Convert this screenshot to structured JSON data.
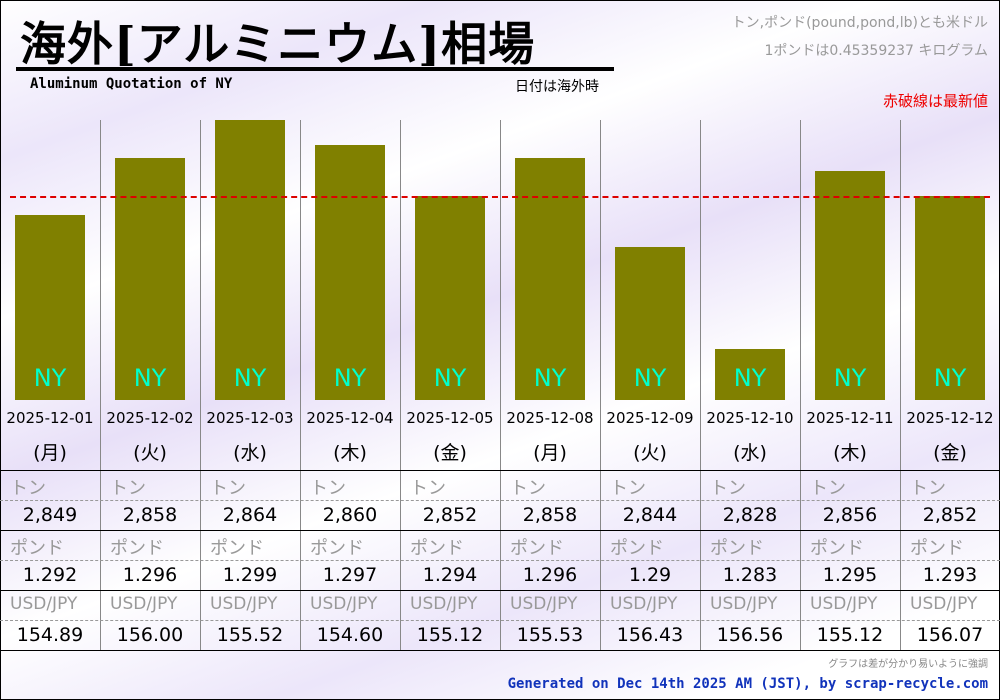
{
  "header": {
    "title": "海外[アルミニウム]相場",
    "subtitle": "Aluminum Quotation of NY",
    "date_note": "日付は海外時",
    "unit_note": "トン,ポンド(pound,pond,lb)とも米ドル",
    "pound_note": "1ポンドは0.45359237 キログラム",
    "red_line_note": "赤破線は最新値"
  },
  "row_labels": {
    "ton": "トン",
    "pound": "ポンド",
    "fx": "USD/JPY"
  },
  "footer": {
    "note": "グラフは差が分かり易いように強調",
    "generated": "Generated on Dec 14th 2025 AM (JST), by scrap-recycle.com"
  },
  "chart_data": {
    "type": "bar",
    "title": "海外[アルミニウム]相場",
    "bar_label": "NY",
    "categories": [
      "2025-12-01",
      "2025-12-02",
      "2025-12-03",
      "2025-12-04",
      "2025-12-05",
      "2025-12-08",
      "2025-12-09",
      "2025-12-10",
      "2025-12-11",
      "2025-12-12"
    ],
    "weekdays": [
      "(月)",
      "(火)",
      "(水)",
      "(木)",
      "(金)",
      "(月)",
      "(火)",
      "(水)",
      "(木)",
      "(金)"
    ],
    "ton": [
      "2,849",
      "2,858",
      "2,864",
      "2,860",
      "2,852",
      "2,858",
      "2,844",
      "2,828",
      "2,856",
      "2,852"
    ],
    "values": [
      2849,
      2858,
      2864,
      2860,
      2852,
      2858,
      2844,
      2828,
      2856,
      2852
    ],
    "pound": [
      "1.292",
      "1.296",
      "1.299",
      "1.297",
      "1.294",
      "1.296",
      "1.29",
      "1.283",
      "1.295",
      "1.293"
    ],
    "usdjpy": [
      "154.89",
      "156.00",
      "155.52",
      "154.60",
      "155.12",
      "155.53",
      "156.43",
      "156.56",
      "155.12",
      "156.07"
    ],
    "ylim": [
      2820,
      2864
    ],
    "reference_line": 2852,
    "colors": {
      "bar": "#808000",
      "label": "#00ffcc",
      "reference": "#dd0000"
    }
  }
}
